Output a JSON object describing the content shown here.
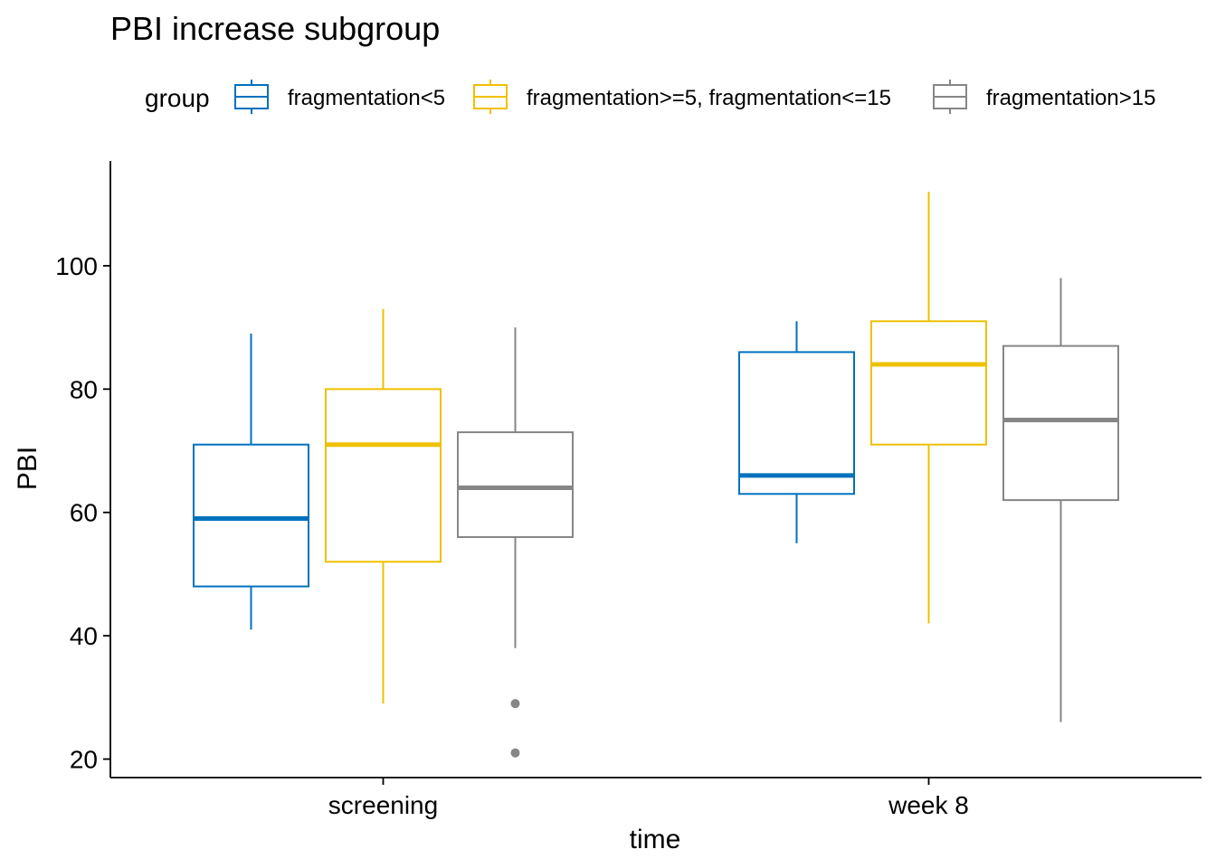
{
  "chart_data": {
    "type": "boxplot",
    "title": "PBI increase subgroup",
    "xlabel": "time",
    "ylabel": "PBI",
    "ylim": [
      17,
      117
    ],
    "yticks": [
      20,
      40,
      60,
      80,
      100
    ],
    "categories": [
      "screening",
      "week 8"
    ],
    "legend": {
      "title": "group",
      "position": "top"
    },
    "series": [
      {
        "name": "fragmentation<5",
        "color": "#0072BD",
        "boxes": [
          {
            "whisker_low": 41,
            "q1": 48,
            "median": 59,
            "q3": 71,
            "whisker_high": 89,
            "outliers": []
          },
          {
            "whisker_low": 55,
            "q1": 63,
            "median": 66,
            "q3": 86,
            "whisker_high": 91,
            "outliers": []
          }
        ]
      },
      {
        "name": "fragmentation>=5, fragmentation<=15",
        "color": "#EFC000",
        "boxes": [
          {
            "whisker_low": 29,
            "q1": 52,
            "median": 71,
            "q3": 80,
            "whisker_high": 93,
            "outliers": []
          },
          {
            "whisker_low": 42,
            "q1": 71,
            "median": 84,
            "q3": 91,
            "whisker_high": 112,
            "outliers": []
          }
        ]
      },
      {
        "name": "fragmentation>15",
        "color": "#868686",
        "boxes": [
          {
            "whisker_low": 38,
            "q1": 56,
            "median": 64,
            "q3": 73,
            "whisker_high": 90,
            "outliers": [
              29,
              21
            ]
          },
          {
            "whisker_low": 26,
            "q1": 62,
            "median": 75,
            "q3": 87,
            "whisker_high": 98,
            "outliers": []
          }
        ]
      }
    ]
  }
}
